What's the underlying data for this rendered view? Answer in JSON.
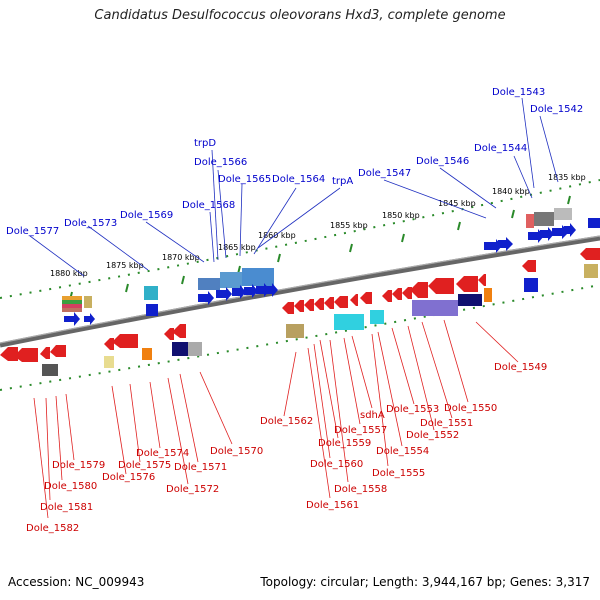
{
  "title": "Candidatus Desulfococcus oleovorans Hxd3, complete genome",
  "accession": "Accession: NC_009943",
  "summary": "Topology: circular; Length: 3,944,167 bp; Genes: 3,317",
  "ticks": [
    "1835 kbp",
    "1840 kbp",
    "1845 kbp",
    "1850 kbp",
    "1855 kbp",
    "1860 kbp",
    "1865 kbp",
    "1870 kbp",
    "1875 kbp",
    "1880 kbp"
  ],
  "top_labels": [
    "Dole_1543",
    "Dole_1542",
    "Dole_1544",
    "Dole_1546",
    "Dole_1547",
    "trpA",
    "Dole_1564",
    "Dole_1565",
    "Dole_1566",
    "trpD",
    "Dole_1568",
    "Dole_1569",
    "Dole_1573",
    "Dole_1577"
  ],
  "bottom_labels": [
    "Dole_1549",
    "Dole_1550",
    "Dole_1551",
    "Dole_1552",
    "Dole_1553",
    "Dole_1554",
    "Dole_1555",
    "sdhA",
    "Dole_1557",
    "Dole_1558",
    "Dole_1559",
    "Dole_1560",
    "Dole_1561",
    "Dole_1562",
    "Dole_1570",
    "Dole_1571",
    "Dole_1572",
    "Dole_1574",
    "Dole_1575",
    "Dole_1576",
    "Dole_1579",
    "Dole_1580",
    "Dole_1581",
    "Dole_1582"
  ]
}
